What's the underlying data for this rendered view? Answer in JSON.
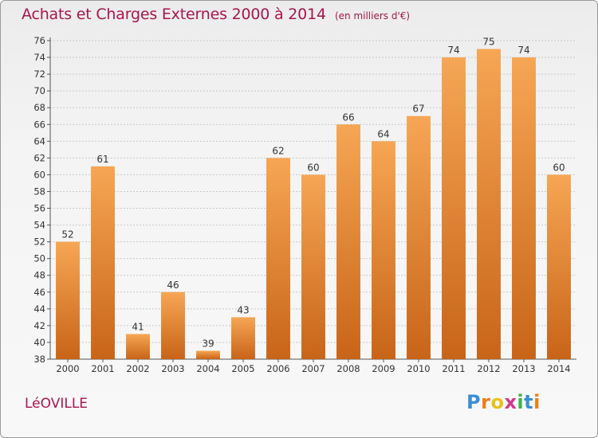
{
  "title": "Achats et Charges Externes 2000 à 2014",
  "unit_note": "(en milliers d'€)",
  "commune": "LéOVILLE",
  "logo": {
    "letters": [
      "P",
      "r",
      "o",
      "x",
      "i",
      "t",
      "i"
    ],
    "colors": [
      "#3a8fd6",
      "#f07c1a",
      "#e8c21c",
      "#d23a8a",
      "#3bb34a",
      "#3a8fd6",
      "#f07c1a"
    ]
  },
  "colors": {
    "title": "#a8154d",
    "bar_light": "#f6a654",
    "bar_dark": "#c86418",
    "grid": "#c8c8c8"
  },
  "chart_data": {
    "type": "bar",
    "title": "Achats et Charges Externes 2000 à 2014",
    "subtitle": "(en milliers d'€)",
    "xlabel": "",
    "ylabel": "",
    "categories": [
      "2000",
      "2001",
      "2002",
      "2003",
      "2004",
      "2005",
      "2006",
      "2007",
      "2008",
      "2009",
      "2010",
      "2011",
      "2012",
      "2013",
      "2014"
    ],
    "values": [
      52,
      61,
      41,
      46,
      39,
      43,
      62,
      60,
      66,
      64,
      67,
      74,
      75,
      74,
      60
    ],
    "ylim": [
      38,
      76
    ],
    "yticks": [
      38,
      40,
      42,
      44,
      46,
      48,
      50,
      52,
      54,
      56,
      58,
      60,
      62,
      64,
      66,
      68,
      70,
      72,
      74,
      76
    ],
    "grid": true,
    "legend": "none"
  }
}
